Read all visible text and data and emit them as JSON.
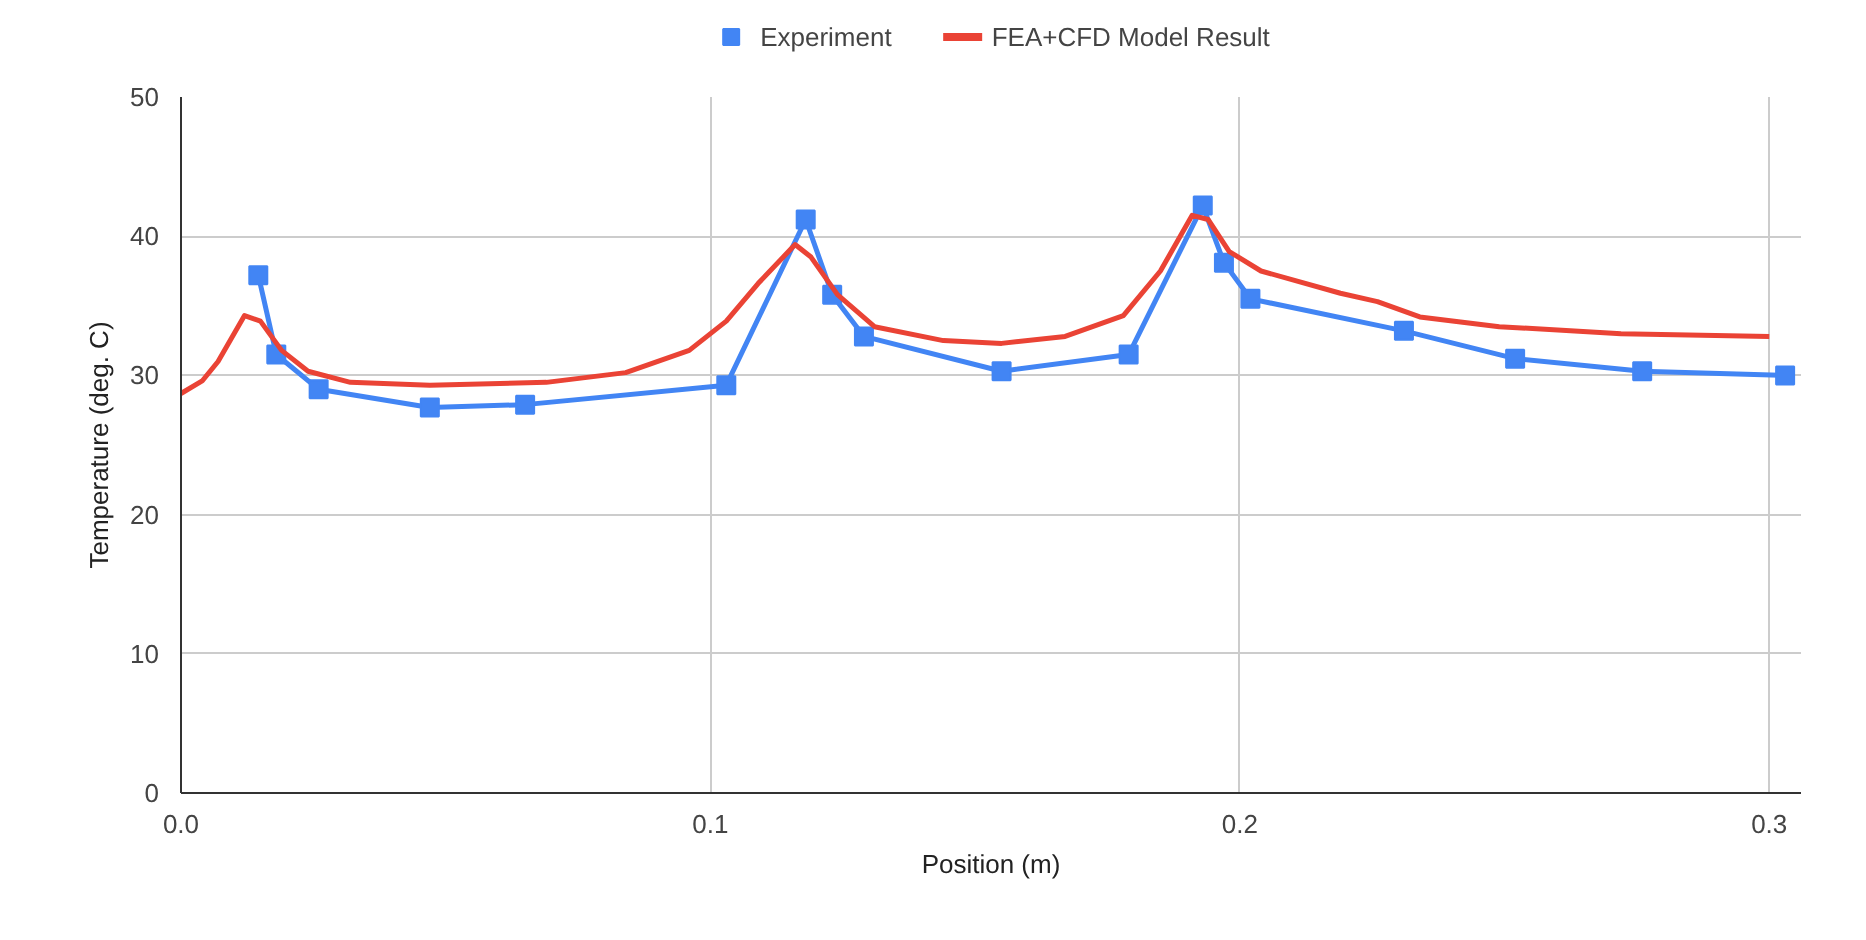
{
  "chart_data": {
    "type": "line",
    "xlabel": "Position (m)",
    "ylabel": "Temperature (deg. C)",
    "xlim": [
      0,
      0.306
    ],
    "xticks": [
      {
        "value": 0,
        "label": "0.0"
      },
      0.1,
      0.2,
      0.3
    ],
    "ylim": [
      0,
      50
    ],
    "yticks": [
      0,
      10,
      20,
      30,
      40,
      50
    ],
    "grid": true,
    "legend": "top",
    "series": [
      {
        "name": "Experiment",
        "color": "#4285f4",
        "marker": "square",
        "x": [
          0.0146,
          0.018,
          0.026,
          0.047,
          0.065,
          0.103,
          0.118,
          0.123,
          0.129,
          0.155,
          0.179,
          0.193,
          0.197,
          0.202,
          0.231,
          0.252,
          0.276,
          0.303
        ],
        "values": [
          37.2,
          31.5,
          29.0,
          27.7,
          27.9,
          29.3,
          41.2,
          35.8,
          32.8,
          30.3,
          31.5,
          42.2,
          38.1,
          35.5,
          33.2,
          31.2,
          30.3,
          30.0
        ]
      },
      {
        "name": "FEA+CFD Model Result",
        "color": "#ea4335",
        "marker": "none",
        "x": [
          0,
          0.004,
          0.007,
          0.012,
          0.015,
          0.019,
          0.024,
          0.032,
          0.047,
          0.069,
          0.084,
          0.096,
          0.103,
          0.109,
          0.116,
          0.119,
          0.124,
          0.131,
          0.144,
          0.155,
          0.167,
          0.178,
          0.185,
          0.191,
          0.194,
          0.198,
          0.204,
          0.219,
          0.226,
          0.234,
          0.249,
          0.272,
          0.3
        ],
        "values": [
          28.7,
          29.6,
          31.0,
          34.3,
          33.9,
          31.8,
          30.3,
          29.5,
          29.3,
          29.5,
          30.2,
          31.8,
          33.9,
          36.6,
          39.4,
          38.5,
          35.8,
          33.5,
          32.5,
          32.3,
          32.8,
          34.3,
          37.5,
          41.5,
          41.2,
          38.9,
          37.5,
          35.9,
          35.3,
          34.2,
          33.5,
          33.0,
          32.8
        ]
      }
    ]
  }
}
